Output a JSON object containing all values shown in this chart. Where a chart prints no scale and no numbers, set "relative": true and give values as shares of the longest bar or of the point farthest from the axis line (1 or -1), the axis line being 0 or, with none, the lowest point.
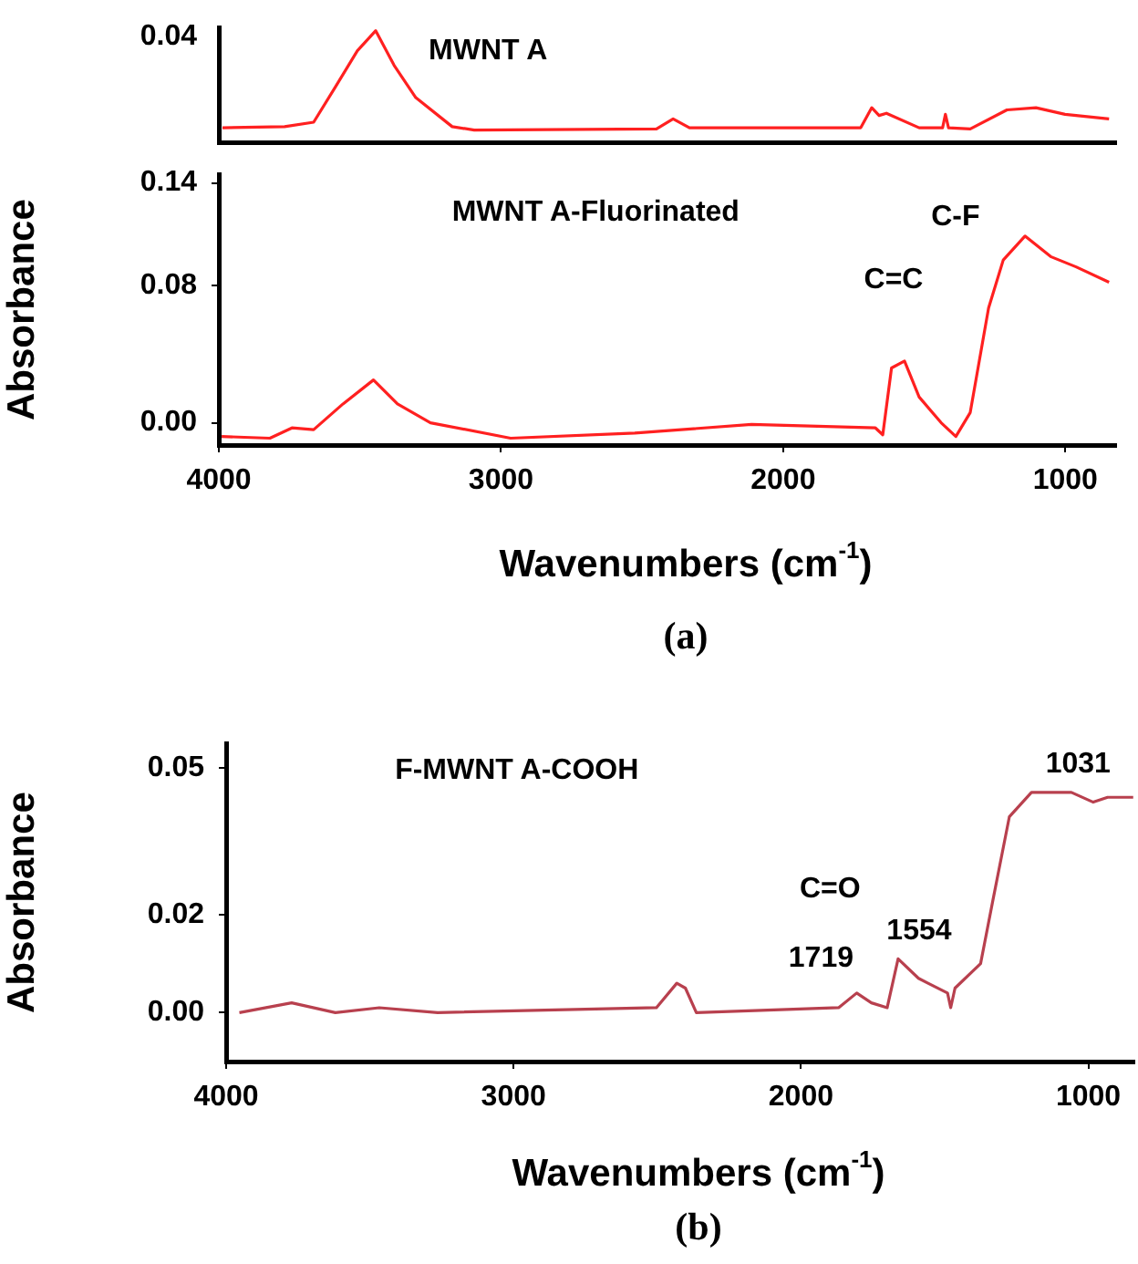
{
  "chart_data": [
    {
      "type": "line",
      "title": "MWNT A",
      "relative": true,
      "legend": false,
      "grid": false,
      "marker": "none",
      "xlim": [
        4000,
        820
      ],
      "x": [
        3987,
        3767,
        3664,
        3586,
        3509,
        3444,
        3379,
        3302,
        3173,
        3095,
        2449,
        2390,
        2332,
        1725,
        1686,
        1660,
        1634,
        1518,
        1435,
        1425,
        1414,
        1337,
        1207,
        1104,
        1001,
        845
      ],
      "series": [
        {
          "color": "#ff2020",
          "values": [
            0.13,
            0.14,
            0.18,
            0.5,
            0.82,
            1.0,
            0.69,
            0.4,
            0.14,
            0.11,
            0.12,
            0.21,
            0.13,
            0.13,
            0.31,
            0.24,
            0.26,
            0.13,
            0.13,
            0.25,
            0.13,
            0.12,
            0.29,
            0.31,
            0.25,
            0.21
          ]
        }
      ],
      "annotations": [
        "0.04"
      ]
    },
    {
      "type": "line",
      "title": "MWNT A-Fluorinated",
      "ylabel": "Absorbance",
      "xlabel": "Wavenumbers (cm$^{-1}$)",
      "legend": false,
      "grid": false,
      "marker": "none",
      "xlim": [
        4000,
        820
      ],
      "ylim": [
        -0.013,
        0.145
      ],
      "xticks": [
        4000,
        3000,
        2000,
        1000
      ],
      "yticks": [
        {
          "value": 0,
          "label": "0.00"
        },
        {
          "value": 0.08,
          "label": "0.08"
        },
        {
          "value": 0.14,
          "label": "0.14"
        }
      ],
      "x": [
        3990,
        3819,
        3741,
        3664,
        3560,
        3452,
        3367,
        3250,
        2966,
        2526,
        2112,
        1673,
        1647,
        1616,
        1570,
        1518,
        1440,
        1388,
        1337,
        1272,
        1220,
        1143,
        1052,
        962,
        845
      ],
      "series": [
        {
          "color": "#ff2020",
          "values": [
            -0.008,
            -0.009,
            -0.003,
            -0.004,
            0.011,
            0.025,
            0.011,
            0.0,
            -0.009,
            -0.006,
            -0.001,
            -0.003,
            -0.007,
            0.032,
            0.036,
            0.015,
            0.0,
            -0.008,
            0.006,
            0.067,
            0.095,
            0.109,
            0.097,
            0.091,
            0.082
          ]
        }
      ],
      "annotations": [
        "C=C",
        "C-F",
        "(a)"
      ]
    },
    {
      "type": "line",
      "title": "F-MWNT A-COOH",
      "ylabel": "Absorbance",
      "xlabel": "Wavenumbers (cm$^{-1}$)",
      "legend": false,
      "grid": false,
      "marker": "none",
      "xlim": [
        4000,
        840
      ],
      "ylim": [
        -0.01,
        0.055
      ],
      "xticks": [
        4000,
        3000,
        2000,
        1000
      ],
      "yticks": [
        {
          "value": 0,
          "label": "0.00"
        },
        {
          "value": 0.02,
          "label": "0.02"
        },
        {
          "value": 0.05,
          "label": "0.05"
        }
      ],
      "x": [
        3954,
        3772,
        3620,
        3467,
        3264,
        2503,
        2432,
        2402,
        2364,
        1869,
        1806,
        1755,
        1700,
        1662,
        1591,
        1490,
        1479,
        1464,
        1375,
        1332,
        1275,
        1198,
        1059,
        983,
        933,
        844
      ],
      "series": [
        {
          "color": "#b8404e",
          "values": [
            0.0,
            0.002,
            0.0,
            0.001,
            0.0,
            0.001,
            0.006,
            0.005,
            0.0,
            0.001,
            0.004,
            0.002,
            0.001,
            0.011,
            0.007,
            0.004,
            0.001,
            0.005,
            0.01,
            0.023,
            0.04,
            0.045,
            0.045,
            0.043,
            0.044,
            0.044
          ]
        }
      ],
      "annotations": [
        "C=O",
        "1719",
        "1554",
        "1031",
        "(b)"
      ]
    }
  ]
}
